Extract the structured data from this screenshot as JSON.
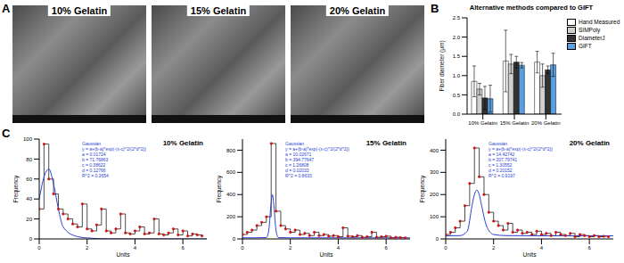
{
  "panel_labels": [
    "A",
    "B",
    "C"
  ],
  "images": {
    "titles": [
      "10% Gelatin",
      "15% Gelatin",
      "20% Gelatin"
    ]
  },
  "chart_data": [
    {
      "type": "bar",
      "title": "Alternative methods compared to GIFT",
      "y_label": "Fiber diameter (μm)",
      "categories": [
        "10% Gelatin",
        "15% Gelatin",
        "20% Gelatin"
      ],
      "series": [
        {
          "name": "Hand Measured",
          "color": "#ffffff",
          "values": [
            0.85,
            1.38,
            1.35
          ],
          "errors": [
            0.4,
            0.8,
            0.28
          ]
        },
        {
          "name": "SIMPoly",
          "color": "#d0d0d0",
          "values": [
            0.65,
            1.3,
            1.0
          ],
          "errors": [
            0.15,
            0.25,
            0.3
          ]
        },
        {
          "name": "DiameterJ",
          "color": "#333333",
          "values": [
            0.42,
            1.35,
            1.15
          ],
          "errors": [
            0.3,
            0.15,
            0.1
          ]
        },
        {
          "name": "GIFT",
          "color": "#5aa0e0",
          "values": [
            0.4,
            1.27,
            1.28
          ],
          "errors": [
            0.35,
            0.07,
            0.3
          ]
        }
      ],
      "ylim": [
        0,
        2.5
      ],
      "yticks": [
        {
          "value": 0,
          "label": "0.0"
        },
        {
          "value": 0.5,
          "label": "0.5"
        },
        {
          "value": 1,
          "label": "1.0"
        },
        {
          "value": 1.5,
          "label": "1.5"
        },
        {
          "value": 2,
          "label": "2.0"
        },
        {
          "value": 2.5,
          "label": "2.5"
        }
      ],
      "legend": "right"
    },
    {
      "type": "histogram",
      "title": "10% Gelatin",
      "x_label": "Units",
      "y_label": "Frequency",
      "bins": [
        0,
        0.2,
        0.4,
        0.6,
        0.8,
        1,
        1.2,
        1.4,
        1.6,
        1.8,
        2,
        2.2,
        2.4,
        2.6,
        2.8,
        3,
        3.2,
        3.4,
        3.6,
        3.8,
        4,
        4.2,
        4.4,
        4.6,
        4.8,
        5,
        5.2,
        5.4,
        5.6,
        5.8,
        6,
        6.2,
        6.4,
        6.6,
        6.8,
        7
      ],
      "counts": [
        30,
        95,
        60,
        45,
        30,
        25,
        20,
        15,
        12,
        35,
        10,
        8,
        14,
        30,
        8,
        6,
        10,
        25,
        6,
        5,
        8,
        12,
        5,
        6,
        20,
        5,
        4,
        6,
        10,
        4,
        8,
        3,
        5,
        4,
        3
      ],
      "color": "#000000",
      "marker": "circle",
      "fit": {
        "color": "#2a3fd0",
        "x": [
          0,
          0.2,
          0.4,
          0.6,
          0.8,
          1,
          1.5,
          2,
          3,
          4,
          5,
          6,
          7
        ],
        "values": [
          40,
          62,
          70,
          55,
          30,
          12,
          3,
          1,
          0,
          0,
          0,
          0,
          0
        ]
      },
      "annotations": [
        "Gaussian",
        "y = a+(b-a)*exp(-(x-c)^2/(2*d^2))",
        "a = 0.01724",
        "b = 71.76863",
        "c = 0.38622",
        "d = 0.12766",
        "R^2 = 0.3654"
      ],
      "xlim": [
        0,
        7
      ],
      "xticks": [
        0,
        2,
        4,
        6
      ],
      "ylim": [
        0,
        100
      ],
      "yticks": [
        0,
        20,
        40,
        60,
        80,
        100
      ]
    },
    {
      "type": "histogram",
      "title": "15% Gelatin",
      "x_label": "Units",
      "y_label": "Frequency",
      "bins": [
        0,
        0.2,
        0.4,
        0.6,
        0.8,
        1,
        1.2,
        1.4,
        1.6,
        1.8,
        2,
        2.2,
        2.4,
        2.6,
        2.8,
        3,
        3.2,
        3.4,
        3.6,
        3.8,
        4,
        4.2,
        4.4,
        4.6,
        4.8,
        5,
        5.2,
        5.4,
        5.6,
        5.8,
        6,
        6.2,
        6.4,
        6.6,
        6.8,
        7
      ],
      "counts": [
        40,
        60,
        80,
        120,
        150,
        200,
        860,
        250,
        120,
        90,
        60,
        80,
        40,
        50,
        30,
        60,
        30,
        40,
        25,
        30,
        20,
        100,
        25,
        20,
        30,
        15,
        20,
        60,
        15,
        20,
        25,
        10,
        15,
        12,
        10
      ],
      "color": "#000000",
      "marker": "circle",
      "fit": {
        "color": "#2a3fd0",
        "x": [
          0,
          0.5,
          1,
          1.1,
          1.2,
          1.25,
          1.3,
          1.4,
          1.5,
          2,
          4,
          7
        ],
        "values": [
          10,
          10,
          12,
          80,
          330,
          400,
          330,
          80,
          12,
          10,
          10,
          10
        ]
      },
      "annotations": [
        "Gaussian",
        "y = a+(b-a)*exp(-(x-c)^2/(2*d^2))",
        "a = 10.02671",
        "b = 394.77647",
        "c = 1.26808",
        "d = 0.02033",
        "R^2 = 0.8633"
      ],
      "xlim": [
        0,
        7
      ],
      "xticks": [
        0,
        2,
        4,
        6
      ],
      "ylim": [
        0,
        900
      ],
      "yticks": [
        0,
        200,
        400,
        600,
        800
      ]
    },
    {
      "type": "histogram",
      "title": "20% Gelatin",
      "x_label": "Units",
      "y_label": "Frequency",
      "bins": [
        0,
        0.2,
        0.4,
        0.6,
        0.8,
        1,
        1.2,
        1.4,
        1.6,
        1.8,
        2,
        2.2,
        2.4,
        2.6,
        2.8,
        3,
        3.2,
        3.4,
        3.6,
        3.8,
        4,
        4.2,
        4.4,
        4.6,
        4.8,
        5,
        5.2,
        5.4,
        5.6,
        5.8,
        6,
        6.2,
        6.4,
        6.6,
        6.8,
        7
      ],
      "counts": [
        20,
        30,
        50,
        80,
        150,
        250,
        410,
        280,
        200,
        120,
        80,
        60,
        40,
        70,
        30,
        40,
        25,
        30,
        20,
        35,
        20,
        25,
        15,
        30,
        20,
        15,
        25,
        10,
        20,
        15,
        10,
        15,
        10,
        12,
        10
      ],
      "color": "#000000",
      "marker": "circle",
      "fit": {
        "color": "#2a3fd0",
        "x": [
          0,
          0.6,
          0.9,
          1.1,
          1.2,
          1.3,
          1.4,
          1.5,
          1.7,
          2,
          2.5,
          4,
          7
        ],
        "values": [
          14,
          15,
          35,
          150,
          200,
          220,
          200,
          150,
          60,
          20,
          15,
          14,
          14
        ]
      },
      "annotations": [
        "Gaussian",
        "y = a+(b-a)*exp(-(x-c)^2/(2*d^2))",
        "a = 14.42742",
        "b = 207.79741",
        "c = 1.30552",
        "d = 0.20152",
        "R^2 = 0.9197"
      ],
      "xlim": [
        0,
        7
      ],
      "xticks": [
        0,
        2,
        4,
        6
      ],
      "ylim": [
        0,
        450
      ],
      "yticks": [
        0,
        100,
        200,
        300,
        400
      ]
    }
  ]
}
